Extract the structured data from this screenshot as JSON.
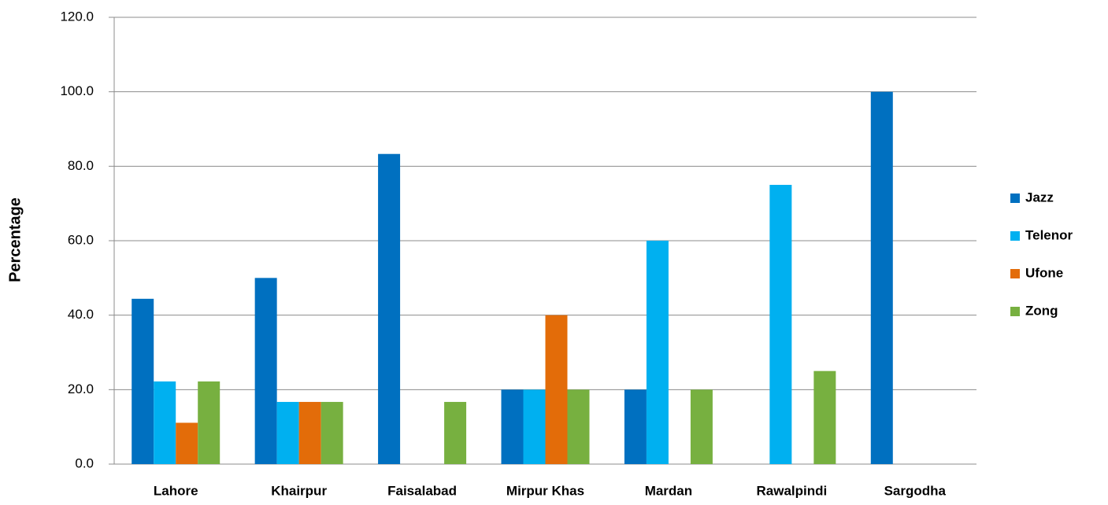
{
  "chart_data": {
    "type": "bar",
    "y_label": "Percentage",
    "categories": [
      "Lahore",
      "Khairpur",
      "Faisalabad",
      "Mirpur Khas",
      "Mardan",
      "Rawalpindi",
      "Sargodha"
    ],
    "series": [
      {
        "name": "Jazz",
        "color": "#0070c0",
        "values": [
          44.4,
          50.0,
          83.3,
          20.0,
          20.0,
          0,
          100.0
        ]
      },
      {
        "name": "Telenor",
        "color": "#00b0f0",
        "values": [
          22.2,
          16.7,
          0,
          20.0,
          60.0,
          75.0,
          0
        ]
      },
      {
        "name": "Ufone",
        "color": "#e36c09",
        "values": [
          11.1,
          16.7,
          0,
          40.0,
          0,
          0,
          0
        ]
      },
      {
        "name": "Zong",
        "color": "#77b040",
        "values": [
          22.2,
          16.7,
          16.7,
          20.0,
          20.0,
          25.0,
          0
        ]
      }
    ],
    "ylim": [
      0,
      120
    ],
    "yticks": [
      {
        "value": 0,
        "label": "0.0"
      },
      {
        "value": 20,
        "label": "20.0"
      },
      {
        "value": 40,
        "label": "40.0"
      },
      {
        "value": 60,
        "label": "60.0"
      },
      {
        "value": 80,
        "label": "80.0"
      },
      {
        "value": 100,
        "label": "100.0"
      },
      {
        "value": 120,
        "label": "120.0"
      }
    ],
    "grid": true,
    "legend": "right"
  }
}
